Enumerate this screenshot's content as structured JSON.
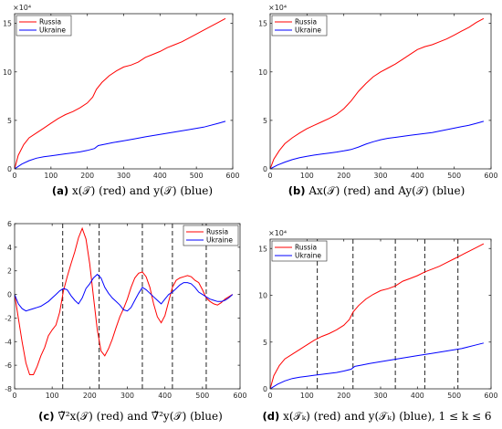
{
  "captions": [
    {
      "label": "(a)",
      "text": "x(𝒯) (red) and y(𝒯) (blue)"
    },
    {
      "label": "(b)",
      "text": "Ax(𝒯) (red) and Ay(𝒯) (blue)"
    },
    {
      "label": "(c)",
      "text": "∇̃²x(𝒯) (red) and ∇̃²y(𝒯) (blue)"
    },
    {
      "label": "(d)",
      "text": "x(𝒯ₖ) (red) and y(𝒯ₖ) (blue), 1 ≤ k ≤ 6"
    }
  ],
  "colors": {
    "russia": "#ff0000",
    "ukraine": "#0000ff",
    "axes": "#262626",
    "vlines": "#222222"
  },
  "chart_data": [
    {
      "type": "line",
      "xlim": [
        0,
        600
      ],
      "ylim": [
        0,
        160000
      ],
      "xticks": [
        0,
        100,
        200,
        300,
        400,
        500,
        600
      ],
      "yticks": [
        0,
        5,
        10,
        15
      ],
      "y_multiplier": "×10⁴",
      "legend": "top-left",
      "series": [
        {
          "name": "Russia",
          "color": "red",
          "x": [
            0,
            10,
            25,
            40,
            60,
            80,
            100,
            120,
            140,
            160,
            180,
            200,
            215,
            225,
            240,
            260,
            280,
            300,
            320,
            340,
            360,
            380,
            400,
            420,
            440,
            460,
            480,
            500,
            520,
            540,
            560,
            580
          ],
          "y": [
            0,
            14000,
            25000,
            32000,
            37000,
            42000,
            47000,
            52000,
            56000,
            59000,
            63000,
            68000,
            74000,
            82000,
            89000,
            96000,
            101000,
            105000,
            107000,
            110000,
            115000,
            118000,
            121000,
            125000,
            128000,
            131000,
            135000,
            139000,
            143000,
            147000,
            151000,
            155000
          ]
        },
        {
          "name": "Ukraine",
          "color": "blue",
          "x": [
            0,
            20,
            40,
            60,
            80,
            100,
            120,
            140,
            160,
            180,
            200,
            220,
            230,
            250,
            270,
            300,
            330,
            360,
            400,
            440,
            480,
            520,
            560,
            580
          ],
          "y": [
            0,
            5000,
            8500,
            11000,
            12500,
            13500,
            14500,
            15500,
            16500,
            17500,
            19000,
            21000,
            24000,
            25500,
            27000,
            29000,
            31000,
            33000,
            35500,
            38000,
            40500,
            43000,
            47000,
            49000
          ]
        }
      ]
    },
    {
      "type": "line",
      "xlim": [
        0,
        600
      ],
      "ylim": [
        0,
        160000
      ],
      "xticks": [
        0,
        100,
        200,
        300,
        400,
        500,
        600
      ],
      "yticks": [
        0,
        5,
        10,
        15
      ],
      "y_multiplier": "×10⁴",
      "legend": "top-left",
      "series": [
        {
          "name": "Russia",
          "color": "red",
          "x": [
            0,
            10,
            25,
            40,
            60,
            80,
            100,
            120,
            140,
            160,
            180,
            200,
            220,
            240,
            260,
            280,
            300,
            320,
            340,
            360,
            380,
            400,
            420,
            440,
            460,
            480,
            500,
            520,
            540,
            560,
            580
          ],
          "y": [
            0,
            10000,
            19000,
            26000,
            32000,
            37000,
            41500,
            45000,
            48500,
            52000,
            56000,
            62000,
            70000,
            80000,
            88000,
            95000,
            100000,
            104000,
            108000,
            113000,
            118000,
            123000,
            126000,
            128000,
            131000,
            134000,
            138000,
            142000,
            146000,
            151000,
            155000
          ]
        },
        {
          "name": "Ukraine",
          "color": "blue",
          "x": [
            0,
            20,
            40,
            60,
            80,
            100,
            120,
            140,
            160,
            180,
            200,
            220,
            240,
            260,
            280,
            300,
            320,
            340,
            360,
            380,
            400,
            420,
            440,
            460,
            480,
            500,
            520,
            540,
            560,
            580
          ],
          "y": [
            0,
            4000,
            7000,
            9500,
            11500,
            13000,
            14200,
            15300,
            16300,
            17300,
            18500,
            20000,
            22500,
            25500,
            28000,
            30000,
            31500,
            32500,
            33500,
            34500,
            35500,
            36500,
            37500,
            39000,
            40500,
            42000,
            43500,
            45000,
            47000,
            49000
          ]
        }
      ]
    },
    {
      "type": "line",
      "xlim": [
        0,
        600
      ],
      "ylim": [
        -8,
        6
      ],
      "xticks": [
        0,
        100,
        200,
        300,
        400,
        500,
        600
      ],
      "yticks": [
        -8,
        -6,
        -4,
        -2,
        0,
        2,
        4,
        6
      ],
      "legend": "top-right",
      "vlines": [
        128,
        225,
        340,
        420,
        510
      ],
      "series": [
        {
          "name": "Russia",
          "color": "red",
          "x": [
            0,
            10,
            20,
            30,
            40,
            50,
            60,
            70,
            80,
            90,
            100,
            110,
            120,
            130,
            140,
            150,
            160,
            170,
            180,
            190,
            200,
            210,
            220,
            230,
            240,
            250,
            260,
            270,
            280,
            290,
            300,
            310,
            320,
            330,
            340,
            350,
            360,
            370,
            380,
            390,
            400,
            410,
            420,
            430,
            440,
            450,
            460,
            470,
            480,
            490,
            500,
            510,
            520,
            530,
            540,
            550,
            560,
            570,
            580
          ],
          "y": [
            0,
            -2.0,
            -4.0,
            -5.8,
            -6.8,
            -6.8,
            -6.1,
            -5.2,
            -4.5,
            -3.5,
            -3.0,
            -2.6,
            -1.5,
            0.3,
            1.5,
            2.6,
            3.6,
            4.8,
            5.6,
            4.7,
            2.6,
            -0.2,
            -3.0,
            -4.8,
            -5.2,
            -4.6,
            -3.8,
            -2.8,
            -1.9,
            -1.2,
            -0.4,
            0.6,
            1.4,
            1.8,
            1.9,
            1.5,
            0.6,
            -0.8,
            -1.9,
            -2.4,
            -1.8,
            -0.6,
            0.6,
            1.2,
            1.4,
            1.5,
            1.6,
            1.5,
            1.2,
            1.0,
            0.4,
            -0.3,
            -0.6,
            -0.8,
            -0.9,
            -0.7,
            -0.4,
            -0.2,
            0.0
          ]
        },
        {
          "name": "Ukraine",
          "color": "blue",
          "x": [
            0,
            10,
            20,
            30,
            40,
            50,
            60,
            70,
            80,
            90,
            100,
            110,
            120,
            130,
            140,
            150,
            160,
            170,
            180,
            190,
            200,
            210,
            220,
            230,
            240,
            250,
            260,
            270,
            280,
            290,
            300,
            310,
            320,
            330,
            340,
            350,
            360,
            370,
            380,
            390,
            400,
            410,
            420,
            430,
            440,
            450,
            460,
            470,
            480,
            490,
            500,
            510,
            520,
            530,
            540,
            550,
            560,
            570,
            580
          ],
          "y": [
            0,
            -0.8,
            -1.2,
            -1.4,
            -1.3,
            -1.2,
            -1.1,
            -1.0,
            -0.8,
            -0.6,
            -0.3,
            0.0,
            0.3,
            0.5,
            0.4,
            -0.1,
            -0.5,
            -0.8,
            -0.3,
            0.5,
            0.9,
            1.4,
            1.7,
            1.4,
            0.6,
            0.1,
            -0.3,
            -0.6,
            -0.9,
            -1.3,
            -1.4,
            -1.1,
            -0.5,
            0.1,
            0.6,
            0.4,
            0.1,
            -0.2,
            -0.5,
            -0.8,
            -0.4,
            0.0,
            0.2,
            0.5,
            0.8,
            1.0,
            1.0,
            0.9,
            0.6,
            0.2,
            0.0,
            -0.2,
            -0.4,
            -0.5,
            -0.6,
            -0.6,
            -0.5,
            -0.3,
            0.0
          ]
        }
      ]
    },
    {
      "type": "line",
      "xlim": [
        0,
        600
      ],
      "ylim": [
        0,
        160000
      ],
      "xticks": [
        0,
        100,
        200,
        300,
        400,
        500,
        600
      ],
      "yticks": [
        0,
        5,
        10,
        15
      ],
      "y_multiplier": "×10⁴",
      "legend": "top-left",
      "vlines": [
        128,
        225,
        340,
        420,
        510
      ],
      "series": [
        {
          "name": "Russia",
          "color": "red",
          "x": [
            0,
            10,
            25,
            40,
            60,
            80,
            100,
            120,
            140,
            160,
            180,
            200,
            215,
            225,
            240,
            260,
            280,
            300,
            320,
            340,
            360,
            380,
            400,
            420,
            440,
            460,
            480,
            500,
            520,
            540,
            560,
            580
          ],
          "y": [
            0,
            14000,
            25000,
            32000,
            37000,
            42000,
            47000,
            52000,
            56000,
            59000,
            63000,
            68000,
            74000,
            82000,
            89000,
            96000,
            101000,
            105000,
            107000,
            110000,
            115000,
            118000,
            121000,
            125000,
            128000,
            131000,
            135000,
            139000,
            143000,
            147000,
            151000,
            155000
          ]
        },
        {
          "name": "Ukraine",
          "color": "blue",
          "x": [
            0,
            20,
            40,
            60,
            80,
            100,
            120,
            140,
            160,
            180,
            200,
            220,
            230,
            250,
            270,
            300,
            330,
            360,
            400,
            440,
            480,
            520,
            560,
            580
          ],
          "y": [
            0,
            5000,
            8500,
            11000,
            12500,
            13500,
            14500,
            15500,
            16500,
            17500,
            19000,
            21000,
            24000,
            25500,
            27000,
            29000,
            31000,
            33000,
            35500,
            38000,
            40500,
            43000,
            47000,
            49000
          ]
        }
      ]
    }
  ]
}
